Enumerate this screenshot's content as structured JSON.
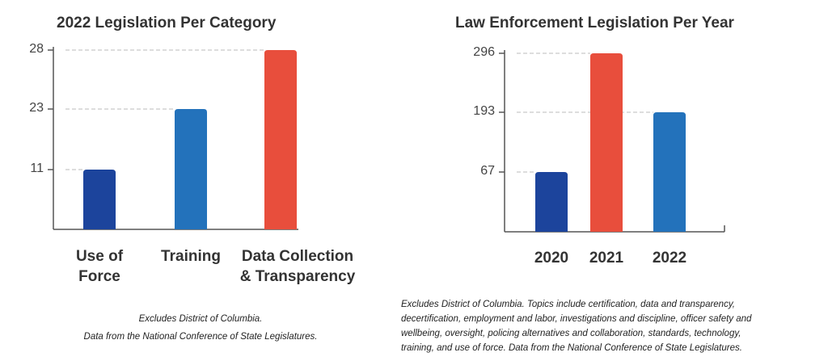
{
  "chart_data": [
    {
      "type": "bar",
      "title": "2022 Legislation Per Category",
      "categories": [
        "Use of\nForce",
        "Training",
        "Data Collection\n& Transparency"
      ],
      "values": [
        11,
        23,
        28
      ],
      "colors": [
        "#1c449c",
        "#2372bb",
        "#e84e3c"
      ],
      "yticks": [
        11,
        23,
        28
      ],
      "grid": "dashed at ticks",
      "note": [
        "Excludes District of Columbia.",
        "Data from the National Conference of State Legislatures."
      ]
    },
    {
      "type": "bar",
      "title": "Law Enforcement Legislation Per Year",
      "categories": [
        "2020",
        "2021",
        "2022"
      ],
      "values": [
        67,
        296,
        193
      ],
      "colors": [
        "#1c449c",
        "#e84e3c",
        "#2372bb"
      ],
      "yticks": [
        67,
        193,
        296
      ],
      "grid": "dashed at ticks",
      "note": [
        "Excludes District of Columbia. Topics include certification, data and transparency,",
        "decertification, employment and labor, investigations and discipline, officer safety and",
        "wellbeing, oversight, policing alternatives and collaboration, standards, technology,",
        "training, and use of force. Data from the National Conference of State Legislatures."
      ]
    }
  ]
}
